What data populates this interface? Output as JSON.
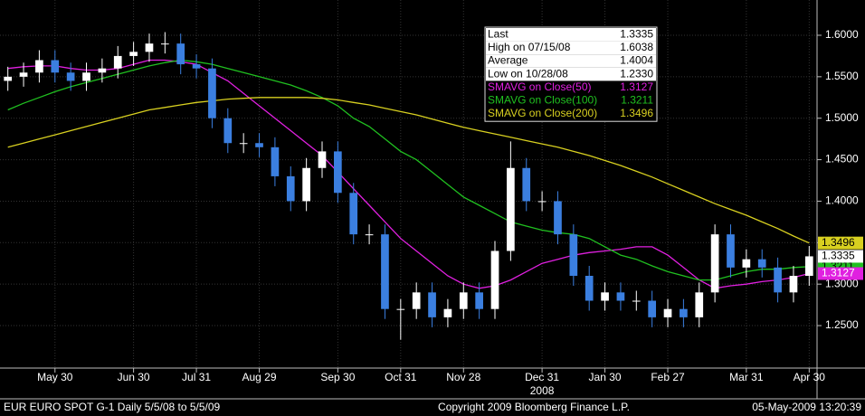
{
  "chart_data": {
    "type": "candlestick",
    "categories": [
      null,
      null,
      null,
      "May 30",
      null,
      null,
      null,
      null,
      "Jun 30",
      null,
      null,
      null,
      "Jul 31",
      null,
      null,
      null,
      "Aug 29",
      null,
      null,
      null,
      null,
      "Sep 30",
      null,
      null,
      null,
      "Oct 31",
      null,
      null,
      null,
      "Nov 28",
      null,
      null,
      null,
      null,
      "Dec 31",
      null,
      null,
      null,
      "Jan 30",
      null,
      null,
      null,
      "Feb 27",
      null,
      null,
      null,
      null,
      "Mar 31",
      null,
      null,
      null,
      "Apr 30"
    ],
    "x_sublabel": "2008",
    "x_sublabel_at": 34,
    "open": [
      1.545,
      1.55,
      1.555,
      1.57,
      1.555,
      1.545,
      1.555,
      1.56,
      1.575,
      1.58,
      1.59,
      1.59,
      1.565,
      1.56,
      1.5,
      1.47,
      1.47,
      1.465,
      1.43,
      1.4,
      1.44,
      1.46,
      1.41,
      1.36,
      1.36,
      1.27,
      1.27,
      1.29,
      1.26,
      1.27,
      1.29,
      1.27,
      1.34,
      1.44,
      1.4,
      1.4,
      1.36,
      1.31,
      1.28,
      1.29,
      1.28,
      1.28,
      1.26,
      1.27,
      1.26,
      1.29,
      1.36,
      1.32,
      1.33,
      1.32,
      1.29,
      1.31
    ],
    "high": [
      1.562,
      1.567,
      1.582,
      1.582,
      1.567,
      1.567,
      1.572,
      1.587,
      1.592,
      1.602,
      1.6038,
      1.602,
      1.577,
      1.572,
      1.512,
      1.482,
      1.482,
      1.477,
      1.442,
      1.452,
      1.472,
      1.472,
      1.422,
      1.372,
      1.372,
      1.282,
      1.302,
      1.302,
      1.282,
      1.302,
      1.302,
      1.352,
      1.472,
      1.452,
      1.412,
      1.412,
      1.372,
      1.322,
      1.302,
      1.302,
      1.292,
      1.292,
      1.282,
      1.282,
      1.302,
      1.372,
      1.372,
      1.342,
      1.342,
      1.332,
      1.322,
      1.346
    ],
    "low": [
      1.533,
      1.538,
      1.543,
      1.543,
      1.533,
      1.533,
      1.543,
      1.548,
      1.563,
      1.568,
      1.578,
      1.553,
      1.548,
      1.488,
      1.458,
      1.458,
      1.453,
      1.418,
      1.388,
      1.388,
      1.428,
      1.398,
      1.348,
      1.348,
      1.258,
      1.233,
      1.258,
      1.248,
      1.248,
      1.258,
      1.258,
      1.258,
      1.328,
      1.388,
      1.388,
      1.348,
      1.298,
      1.268,
      1.268,
      1.268,
      1.268,
      1.248,
      1.248,
      1.248,
      1.248,
      1.278,
      1.308,
      1.308,
      1.308,
      1.278,
      1.278,
      1.298
    ],
    "close": [
      1.55,
      1.555,
      1.57,
      1.555,
      1.545,
      1.555,
      1.56,
      1.575,
      1.58,
      1.59,
      1.59,
      1.565,
      1.56,
      1.5,
      1.47,
      1.47,
      1.465,
      1.43,
      1.4,
      1.44,
      1.46,
      1.41,
      1.36,
      1.36,
      1.27,
      1.27,
      1.29,
      1.26,
      1.27,
      1.29,
      1.27,
      1.34,
      1.44,
      1.4,
      1.4,
      1.36,
      1.31,
      1.28,
      1.29,
      1.28,
      1.28,
      1.26,
      1.27,
      1.26,
      1.29,
      1.36,
      1.32,
      1.33,
      1.32,
      1.29,
      1.31,
      1.3335
    ],
    "up_color": "#ffffff",
    "down_color": "#3b7fe0",
    "series": [
      {
        "name": "SMAVG on Close(50)",
        "color": "#e020e0",
        "values": [
          1.56,
          1.562,
          1.563,
          1.563,
          1.56,
          1.558,
          1.558,
          1.56,
          1.565,
          1.57,
          1.57,
          1.568,
          1.565,
          1.555,
          1.545,
          1.53,
          1.515,
          1.5,
          1.485,
          1.47,
          1.455,
          1.435,
          1.415,
          1.395,
          1.375,
          1.355,
          1.34,
          1.325,
          1.31,
          1.3,
          1.295,
          1.298,
          1.305,
          1.315,
          1.325,
          1.33,
          1.335,
          1.338,
          1.34,
          1.342,
          1.345,
          1.345,
          1.335,
          1.32,
          1.305,
          1.295,
          1.298,
          1.3,
          1.303,
          1.305,
          1.308,
          1.3127
        ]
      },
      {
        "name": "SMAVG on Close(100)",
        "color": "#20c020",
        "values": [
          1.51,
          1.518,
          1.525,
          1.532,
          1.538,
          1.543,
          1.548,
          1.553,
          1.558,
          1.563,
          1.567,
          1.57,
          1.568,
          1.565,
          1.56,
          1.555,
          1.55,
          1.545,
          1.54,
          1.533,
          1.525,
          1.515,
          1.5,
          1.49,
          1.475,
          1.46,
          1.45,
          1.435,
          1.42,
          1.405,
          1.395,
          1.385,
          1.375,
          1.37,
          1.365,
          1.362,
          1.36,
          1.355,
          1.345,
          1.335,
          1.33,
          1.322,
          1.315,
          1.31,
          1.305,
          1.305,
          1.31,
          1.315,
          1.318,
          1.318,
          1.32,
          1.3211
        ]
      },
      {
        "name": "SMAVG on Close(200)",
        "color": "#d8d020",
        "values": [
          1.465,
          1.47,
          1.475,
          1.48,
          1.485,
          1.49,
          1.495,
          1.5,
          1.505,
          1.51,
          1.513,
          1.516,
          1.519,
          1.521,
          1.523,
          1.524,
          1.525,
          1.525,
          1.525,
          1.525,
          1.524,
          1.522,
          1.519,
          1.516,
          1.512,
          1.508,
          1.504,
          1.499,
          1.494,
          1.489,
          1.485,
          1.481,
          1.477,
          1.473,
          1.469,
          1.465,
          1.46,
          1.455,
          1.449,
          1.443,
          1.436,
          1.429,
          1.421,
          1.413,
          1.405,
          1.397,
          1.39,
          1.383,
          1.375,
          1.367,
          1.358,
          1.3496
        ]
      }
    ],
    "ylim": [
      1.1988,
      1.6425
    ],
    "yticks": [
      {
        "value": 1.25,
        "label": "1.2500"
      },
      {
        "value": 1.3,
        "label": "1.3000"
      },
      {
        "value": 1.35,
        "label": "1.3500"
      },
      {
        "value": 1.4,
        "label": "1.4000"
      },
      {
        "value": 1.45,
        "label": "1.4500"
      },
      {
        "value": 1.5,
        "label": "1.5000"
      },
      {
        "value": 1.55,
        "label": "1.5500"
      },
      {
        "value": 1.6,
        "label": "1.6000"
      }
    ],
    "grid": true,
    "stats": [
      {
        "label": "Last",
        "value": "1.3335"
      },
      {
        "label": "High on  07/15/08",
        "value": "1.6038"
      },
      {
        "label": "Average",
        "value": "1.4004"
      },
      {
        "label": "Low on  10/28/08",
        "value": "1.2330"
      }
    ]
  },
  "footer": {
    "left": "EUR  EURO SPOT    G-1   Daily  5/5/08 to 5/5/09",
    "center": "Copyright 2009 Bloomberg Finance L.P.",
    "right": "05-May-2009 13:20:39"
  }
}
